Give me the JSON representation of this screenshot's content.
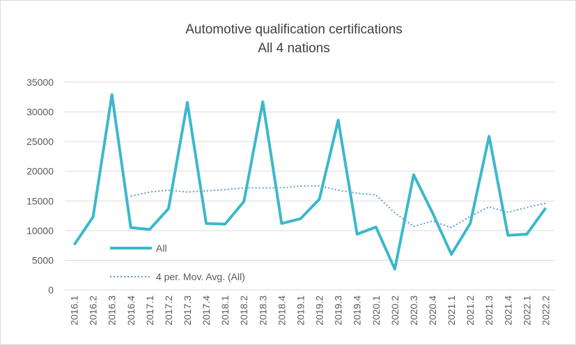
{
  "chart_data": {
    "type": "line",
    "title": "Automotive qualification certifications",
    "subtitle": "All 4 nations",
    "categories": [
      "2016.1",
      "2016.2",
      "2016.3",
      "2016.4",
      "2017.1",
      "2017.2",
      "2017.3",
      "2017.4",
      "2018.1",
      "2018.2",
      "2018.3",
      "2018.4",
      "2019.1",
      "2019.2",
      "2019.3",
      "2019.4",
      "2020.1",
      "2020.2",
      "2020.3",
      "2020.4",
      "2021.1",
      "2021.2",
      "2021.3",
      "2021.4",
      "2022.1",
      "2022.2"
    ],
    "series": [
      {
        "name": "All",
        "color": "#3bb8cc",
        "style": "solid",
        "values": [
          7600,
          12300,
          32900,
          10500,
          10200,
          13700,
          31600,
          11200,
          11100,
          14900,
          31700,
          11200,
          12000,
          15300,
          28600,
          9400,
          10600,
          3500,
          19400,
          13000,
          6000,
          11200,
          25900,
          9200,
          9400,
          13800
        ]
      },
      {
        "name": "4 per. Mov. Avg. (All)",
        "color": "#5b9bd5",
        "style": "dotted",
        "values": [
          null,
          null,
          null,
          15800,
          16500,
          16800,
          16500,
          16700,
          16900,
          17200,
          17200,
          17200,
          17500,
          17550,
          16800,
          16300,
          16000,
          13000,
          10700,
          11600,
          10500,
          12400,
          14000,
          13100,
          13900,
          14600
        ]
      }
    ],
    "ylim": [
      0,
      35000
    ],
    "yticks": [
      0,
      5000,
      10000,
      15000,
      20000,
      25000,
      30000,
      35000
    ],
    "grid": true,
    "legend": "lower left"
  }
}
